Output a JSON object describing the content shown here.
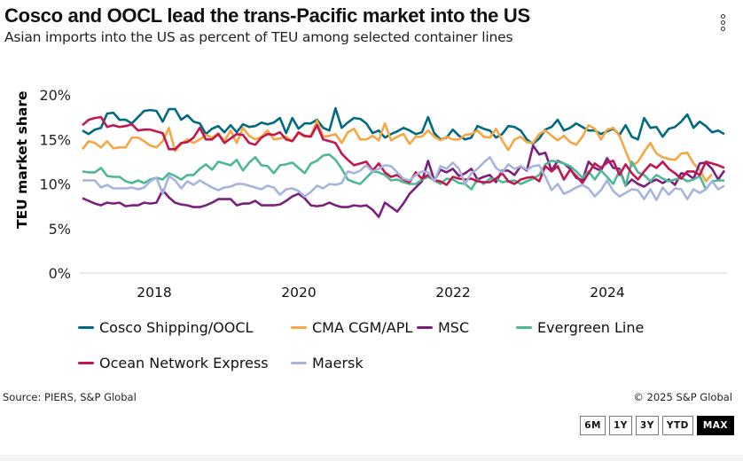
{
  "header": {
    "title": "Cosco and OOCL lead the trans-Pacific market into the US",
    "subtitle": "Asian imports into the US as percent of TEU among selected container lines",
    "menu_icon": "more-vertical-icon"
  },
  "footer": {
    "source": "Source: PIERS, S&P Global",
    "copyright": "© 2025 S&P Global",
    "ranges": [
      "6M",
      "1Y",
      "3Y",
      "YTD",
      "MAX"
    ],
    "active_range": "MAX"
  },
  "chart_data": {
    "type": "line",
    "title": "Cosco and OOCL lead the trans-Pacific market into the US",
    "subtitle": "Asian imports into the US as percent of TEU among selected container lines",
    "xlabel": "",
    "ylabel": "TEU market share",
    "ylim": [
      0,
      20
    ],
    "yticks": [
      0,
      5,
      10,
      15,
      20
    ],
    "ytick_labels": [
      "0%",
      "5%",
      "10%",
      "15%",
      "20%"
    ],
    "xticks": [
      "2018",
      "2020",
      "2022",
      "2024"
    ],
    "x_start": "2017-01",
    "x_end": "2025-06",
    "x_frequency": "monthly",
    "grid": false,
    "legend_position": "bottom",
    "series": [
      {
        "name": "Cosco Shipping/OOCL",
        "color": "#006a80",
        "values": [
          16.0,
          15.6,
          16.1,
          16.3,
          17.9,
          18.0,
          17.2,
          17.2,
          16.8,
          17.5,
          18.2,
          18.3,
          18.2,
          17.0,
          18.4,
          18.4,
          17.2,
          17.7,
          17.0,
          16.8,
          15.6,
          16.2,
          16.5,
          15.8,
          16.6,
          15.8,
          16.7,
          16.4,
          16.5,
          16.9,
          16.7,
          16.9,
          17.4,
          15.7,
          17.4,
          16.2,
          16.8,
          16.8,
          17.2,
          16.3,
          16.0,
          18.5,
          16.3,
          16.9,
          17.4,
          17.3,
          16.8,
          15.7,
          16.0,
          15.2,
          15.6,
          15.9,
          16.3,
          16.0,
          15.6,
          15.8,
          17.5,
          15.7,
          15.0,
          15.2,
          16.1,
          15.4,
          15.0,
          15.2,
          16.5,
          16.2,
          16.0,
          15.2,
          15.6,
          16.5,
          16.4,
          16.0,
          15.0,
          14.5,
          15.1,
          16.1,
          16.4,
          17.2,
          16.0,
          16.3,
          16.8,
          16.4,
          16.0,
          16.0,
          15.6,
          15.9,
          16.2,
          15.5,
          16.6,
          15.3,
          15.0,
          17.4,
          16.3,
          16.4,
          15.3,
          16.2,
          16.4,
          17.0,
          17.8,
          16.3,
          17.0,
          16.5,
          15.8,
          16.0,
          15.6
        ]
      },
      {
        "name": "CMA CGM/APL",
        "color": "#f4a742",
        "values": [
          13.9,
          14.8,
          14.6,
          14.1,
          14.8,
          14.0,
          14.1,
          14.1,
          15.2,
          15.2,
          14.8,
          14.3,
          14.1,
          14.8,
          16.3,
          13.7,
          14.5,
          15.0,
          14.6,
          15.0,
          15.5,
          15.2,
          15.7,
          14.8,
          16.0,
          14.6,
          16.3,
          15.4,
          15.0,
          15.3,
          16.0,
          15.0,
          15.1,
          15.3,
          14.8,
          15.7,
          15.3,
          15.4,
          17.1,
          15.3,
          15.4,
          15.6,
          14.6,
          15.8,
          16.2,
          15.0,
          15.0,
          15.4,
          14.9,
          16.8,
          14.9,
          15.3,
          15.6,
          14.5,
          15.3,
          15.3,
          16.0,
          15.3,
          14.9,
          15.3,
          15.0,
          15.0,
          15.5,
          15.6,
          16.0,
          15.3,
          15.2,
          16.2,
          14.9,
          13.8,
          15.0,
          15.3,
          14.7,
          14.6,
          15.6,
          16.0,
          15.4,
          14.9,
          15.4,
          14.7,
          14.4,
          15.3,
          16.6,
          16.2,
          15.0,
          16.1,
          16.3,
          15.4,
          13.7,
          12.0,
          12.5,
          13.6,
          14.6,
          13.4,
          13.0,
          12.8,
          12.7,
          13.4,
          13.5,
          12.3,
          11.6,
          10.3,
          11.1
        ]
      },
      {
        "name": "MSC",
        "color": "#7b1f7f",
        "values": [
          8.4,
          8.1,
          7.8,
          7.6,
          7.9,
          7.8,
          7.9,
          7.5,
          7.6,
          7.6,
          7.9,
          7.8,
          7.9,
          9.3,
          8.5,
          7.9,
          7.7,
          7.6,
          7.4,
          7.4,
          7.6,
          7.9,
          8.3,
          8.3,
          8.3,
          7.6,
          7.8,
          7.8,
          8.1,
          7.6,
          7.6,
          7.6,
          7.7,
          8.1,
          8.6,
          8.9,
          8.4,
          7.6,
          7.5,
          7.6,
          7.9,
          7.6,
          7.4,
          7.4,
          7.6,
          7.5,
          7.6,
          7.1,
          6.3,
          7.9,
          7.4,
          6.9,
          7.8,
          8.9,
          9.6,
          10.3,
          12.6,
          10.4,
          11.6,
          11.3,
          11.7,
          10.9,
          11.2,
          11.7,
          10.5,
          10.8,
          11.0,
          10.2,
          11.5,
          11.5,
          11.0,
          12.0,
          11.5,
          14.3,
          13.3,
          13.5,
          11.5,
          12.6,
          12.3,
          11.7,
          10.7,
          10.4,
          12.5,
          11.8,
          11.5,
          12.9,
          11.8,
          11.7,
          9.8,
          10.5,
          10.0,
          9.7,
          10.2,
          10.5,
          10.1,
          10.5,
          9.9,
          11.2,
          11.1,
          10.6,
          12.3,
          12.4,
          11.7,
          10.5,
          11.5
        ]
      },
      {
        "name": "Evergreen Line",
        "color": "#4db896",
        "values": [
          11.4,
          11.3,
          11.3,
          11.8,
          10.9,
          10.8,
          10.8,
          10.3,
          10.1,
          10.4,
          10.1,
          10.5,
          10.7,
          10.5,
          11.2,
          10.9,
          10.5,
          11.0,
          11.0,
          11.7,
          12.2,
          11.6,
          12.5,
          12.3,
          12.1,
          12.7,
          11.5,
          12.4,
          13.0,
          12.1,
          12.0,
          11.2,
          12.1,
          12.2,
          12.4,
          11.8,
          11.2,
          12.3,
          12.6,
          13.2,
          13.3,
          12.7,
          11.7,
          10.5,
          10.2,
          10.0,
          10.7,
          11.4,
          11.3,
          11.0,
          10.4,
          10.5,
          10.2,
          10.0,
          10.0,
          10.5,
          10.8,
          10.4,
          10.0,
          10.6,
          10.5,
          10.1,
          10.0,
          9.4,
          10.5,
          10.0,
          10.6,
          10.6,
          10.2,
          10.3,
          10.4,
          10.0,
          10.3,
          10.6,
          11.0,
          12.2,
          12.6,
          12.5,
          12.3,
          12.0,
          11.4,
          10.7,
          11.4,
          10.5,
          11.5,
          10.8,
          10.0,
          11.5,
          9.8,
          12.5,
          11.3,
          11.0,
          10.3,
          11.0,
          10.6,
          10.3,
          10.5,
          10.7,
          10.3,
          10.5,
          10.9,
          9.4,
          10.3,
          10.4,
          10.4
        ]
      },
      {
        "name": "Ocean Network Express",
        "color": "#c0174f",
        "values": [
          16.6,
          17.2,
          17.4,
          17.5,
          16.4,
          16.6,
          16.4,
          16.5,
          16.7,
          16.0,
          16.1,
          16.1,
          15.9,
          15.7,
          13.9,
          13.9,
          14.6,
          14.7,
          15.2,
          16.3,
          15.0,
          15.0,
          15.6,
          14.6,
          15.1,
          15.6,
          15.5,
          14.6,
          14.4,
          15.2,
          15.6,
          15.5,
          15.8,
          15.0,
          14.8,
          15.8,
          15.4,
          15.3,
          16.6,
          15.0,
          14.8,
          14.6,
          13.4,
          12.7,
          12.1,
          12.3,
          12.5,
          11.5,
          12.3,
          11.3,
          10.8,
          11.0,
          10.5,
          10.2,
          11.3,
          10.6,
          11.0,
          10.4,
          10.3,
          9.9,
          10.8,
          10.6,
          10.5,
          10.6,
          10.3,
          10.2,
          10.2,
          10.6,
          11.2,
          10.3,
          10.0,
          10.5,
          10.7,
          10.8,
          10.3,
          12.0,
          11.4,
          12.0,
          10.5,
          11.6,
          10.9,
          10.1,
          11.2,
          12.3,
          11.8,
          12.4,
          12.6,
          11.0,
          12.2,
          11.2,
          10.5,
          11.4,
          12.2,
          11.8,
          12.5,
          11.7,
          11.2,
          10.6,
          11.4,
          11.4,
          11.0,
          12.5,
          12.3,
          12.1,
          11.8
        ]
      },
      {
        "name": "Maersk",
        "color": "#a8b4e0",
        "values": [
          10.4,
          10.4,
          10.4,
          9.6,
          9.9,
          9.5,
          9.5,
          9.5,
          9.6,
          9.4,
          9.6,
          10.3,
          10.7,
          8.9,
          10.9,
          10.4,
          9.5,
          10.3,
          9.9,
          10.4,
          10.0,
          9.6,
          9.3,
          9.6,
          9.7,
          10.0,
          10.0,
          9.8,
          9.6,
          9.4,
          9.8,
          9.6,
          8.8,
          9.4,
          9.5,
          9.2,
          8.6,
          9.1,
          9.8,
          9.5,
          10.0,
          9.9,
          10.1,
          11.4,
          11.2,
          11.5,
          12.1,
          11.4,
          11.7,
          12.1,
          12.0,
          11.3,
          10.6,
          10.4,
          11.0,
          11.4,
          11.3,
          10.3,
          12.0,
          11.7,
          12.4,
          11.7,
          10.0,
          11.2,
          11.7,
          12.4,
          13.0,
          11.8,
          11.3,
          12.2,
          11.7,
          12.0,
          11.6,
          12.0,
          12.1,
          10.8,
          9.3,
          10.0,
          8.9,
          9.2,
          9.6,
          9.9,
          9.5,
          8.6,
          9.3,
          10.4,
          9.2,
          8.6,
          9.0,
          9.4,
          9.3,
          8.3,
          9.4,
          8.2,
          9.6,
          8.8,
          9.5,
          9.4,
          8.3,
          9.4,
          9.0,
          9.4,
          10.3,
          9.4,
          9.8
        ]
      }
    ]
  }
}
